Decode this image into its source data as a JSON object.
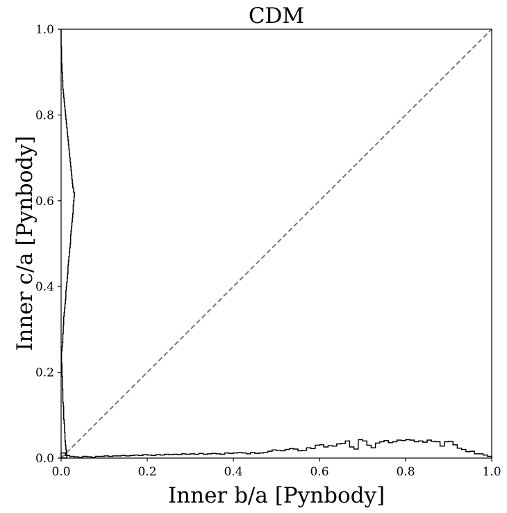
{
  "chart_data": {
    "type": "line",
    "title": "CDM",
    "xlabel": "Inner b/a [Pynbody]",
    "ylabel": "Inner c/a [Pynbody]",
    "xlim": [
      0,
      1
    ],
    "ylim": [
      0,
      1
    ],
    "xticks": [
      0,
      0.2,
      0.4,
      0.6,
      0.8,
      1.0
    ],
    "yticks": [
      0,
      0.2,
      0.4,
      0.6,
      0.8,
      1.0
    ],
    "xtick_labels": [
      "0.0",
      "0.2",
      "0.4",
      "0.6",
      "0.8",
      "1.0"
    ],
    "ytick_labels": [
      "0.0",
      "0.2",
      "0.4",
      "0.6",
      "0.8",
      "1.0"
    ],
    "grid": false,
    "reference_line": {
      "name": "y = x",
      "points": [
        [
          0,
          0
        ],
        [
          1,
          1
        ]
      ],
      "style": "dashed",
      "color": "#777777"
    },
    "series": [
      {
        "name": "b/a histogram (along x-axis)",
        "color": "#000000",
        "orientation": "horizontal",
        "bin_width": 0.01,
        "bin_starts": [
          0.0,
          0.01,
          0.02,
          0.03,
          0.04,
          0.05,
          0.06,
          0.07,
          0.08,
          0.09,
          0.1,
          0.11,
          0.12,
          0.13,
          0.14,
          0.15,
          0.16,
          0.17,
          0.18,
          0.19,
          0.2,
          0.21,
          0.22,
          0.23,
          0.24,
          0.25,
          0.26,
          0.27,
          0.28,
          0.29,
          0.3,
          0.31,
          0.32,
          0.33,
          0.34,
          0.35,
          0.36,
          0.37,
          0.38,
          0.39,
          0.4,
          0.41,
          0.42,
          0.43,
          0.44,
          0.45,
          0.46,
          0.47,
          0.48,
          0.49,
          0.5,
          0.51,
          0.52,
          0.53,
          0.54,
          0.55,
          0.56,
          0.57,
          0.58,
          0.59,
          0.6,
          0.61,
          0.62,
          0.63,
          0.64,
          0.65,
          0.66,
          0.67,
          0.68,
          0.69,
          0.7,
          0.71,
          0.72,
          0.73,
          0.74,
          0.75,
          0.76,
          0.77,
          0.78,
          0.79,
          0.8,
          0.81,
          0.82,
          0.83,
          0.84,
          0.85,
          0.86,
          0.87,
          0.88,
          0.89,
          0.9,
          0.91,
          0.92,
          0.93,
          0.94,
          0.95,
          0.96,
          0.97,
          0.98,
          0.99
        ],
        "values": [
          0.012,
          0.006,
          0.004,
          0.003,
          0.002,
          0.004,
          0.003,
          0.002,
          0.004,
          0.004,
          0.005,
          0.004,
          0.005,
          0.005,
          0.006,
          0.005,
          0.006,
          0.007,
          0.006,
          0.008,
          0.007,
          0.006,
          0.008,
          0.007,
          0.009,
          0.008,
          0.009,
          0.008,
          0.01,
          0.009,
          0.01,
          0.009,
          0.011,
          0.009,
          0.01,
          0.011,
          0.01,
          0.009,
          0.012,
          0.011,
          0.012,
          0.013,
          0.012,
          0.01,
          0.013,
          0.011,
          0.012,
          0.013,
          0.016,
          0.019,
          0.018,
          0.017,
          0.02,
          0.022,
          0.021,
          0.017,
          0.018,
          0.024,
          0.022,
          0.03,
          0.031,
          0.026,
          0.029,
          0.028,
          0.033,
          0.034,
          0.04,
          0.026,
          0.021,
          0.043,
          0.04,
          0.03,
          0.024,
          0.035,
          0.038,
          0.041,
          0.036,
          0.038,
          0.042,
          0.041,
          0.043,
          0.042,
          0.038,
          0.04,
          0.037,
          0.042,
          0.039,
          0.038,
          0.028,
          0.038,
          0.039,
          0.031,
          0.023,
          0.02,
          0.015,
          0.016,
          0.01,
          0.01,
          0.007,
          0.004
        ]
      },
      {
        "name": "c/a histogram (along y-axis)",
        "color": "#000000",
        "orientation": "vertical",
        "bin_width": 0.01,
        "bin_starts": [
          0.0,
          0.01,
          0.02,
          0.03,
          0.04,
          0.05,
          0.06,
          0.07,
          0.08,
          0.09,
          0.1,
          0.11,
          0.12,
          0.13,
          0.14,
          0.15,
          0.16,
          0.17,
          0.18,
          0.19,
          0.2,
          0.21,
          0.22,
          0.23,
          0.24,
          0.25,
          0.26,
          0.27,
          0.28,
          0.29,
          0.3,
          0.31,
          0.32,
          0.33,
          0.34,
          0.35,
          0.36,
          0.37,
          0.38,
          0.39,
          0.4,
          0.41,
          0.42,
          0.43,
          0.44,
          0.45,
          0.46,
          0.47,
          0.48,
          0.49,
          0.5,
          0.51,
          0.52,
          0.53,
          0.54,
          0.55,
          0.56,
          0.57,
          0.58,
          0.59,
          0.6,
          0.61,
          0.62,
          0.63,
          0.64,
          0.65,
          0.66,
          0.67,
          0.68,
          0.69,
          0.7,
          0.71,
          0.72,
          0.73,
          0.74,
          0.75,
          0.76,
          0.77,
          0.78,
          0.79,
          0.8,
          0.81,
          0.82,
          0.83,
          0.84,
          0.85,
          0.86,
          0.87,
          0.88,
          0.89,
          0.9,
          0.91,
          0.92,
          0.93,
          0.94,
          0.95,
          0.96,
          0.97,
          0.98,
          0.99
        ],
        "values": [
          0.013,
          0.012,
          0.011,
          0.01,
          0.009,
          0.009,
          0.008,
          0.008,
          0.007,
          0.006,
          0.006,
          0.006,
          0.005,
          0.004,
          0.004,
          0.004,
          0.003,
          0.003,
          0.003,
          0.002,
          0.002,
          0.002,
          0.001,
          0.001,
          0.001,
          0.002,
          0.003,
          0.004,
          0.004,
          0.005,
          0.005,
          0.006,
          0.006,
          0.007,
          0.008,
          0.009,
          0.01,
          0.011,
          0.011,
          0.012,
          0.013,
          0.014,
          0.015,
          0.016,
          0.016,
          0.017,
          0.018,
          0.019,
          0.02,
          0.021,
          0.022,
          0.022,
          0.023,
          0.024,
          0.025,
          0.026,
          0.027,
          0.028,
          0.028,
          0.029,
          0.03,
          0.031,
          0.029,
          0.027,
          0.026,
          0.025,
          0.024,
          0.023,
          0.022,
          0.021,
          0.02,
          0.019,
          0.018,
          0.017,
          0.016,
          0.015,
          0.014,
          0.013,
          0.012,
          0.011,
          0.01,
          0.009,
          0.008,
          0.007,
          0.006,
          0.005,
          0.004,
          0.004,
          0.003,
          0.003,
          0.002,
          0.002,
          0.001,
          0.001,
          0.001,
          0.001,
          0.0,
          0.0,
          0.0,
          0.0
        ]
      }
    ]
  }
}
